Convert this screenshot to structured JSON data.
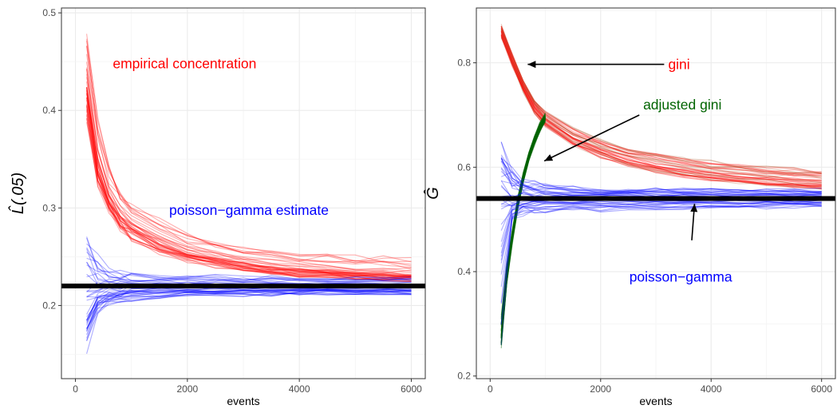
{
  "chart_data": [
    {
      "type": "line",
      "xlabel": "events",
      "ylabel": "L̂(.05)",
      "xlim": [
        -250,
        6250
      ],
      "ylim": [
        0.125,
        0.505
      ],
      "xticks": [
        0,
        2000,
        4000,
        6000
      ],
      "yticks": [
        0.2,
        0.3,
        0.4,
        0.5
      ],
      "xtick_labels": [
        "0",
        "2000",
        "4000",
        "6000"
      ],
      "ytick_labels": [
        "0.2",
        "0.3",
        "0.4",
        "0.5"
      ],
      "grid": true,
      "reference_line": {
        "y": 0.22,
        "color": "#000000"
      },
      "x": [
        200,
        400,
        600,
        800,
        1000,
        1500,
        2000,
        2500,
        3000,
        3500,
        4000,
        4500,
        5000,
        5500,
        6000
      ],
      "series": [
        {
          "label": "empirical concentration",
          "color": "#ff0000",
          "replicates": 40,
          "center": [
            0.43,
            0.35,
            0.315,
            0.295,
            0.284,
            0.268,
            0.257,
            0.25,
            0.245,
            0.241,
            0.238,
            0.236,
            0.234,
            0.233,
            0.232
          ],
          "low": [
            0.385,
            0.32,
            0.29,
            0.275,
            0.265,
            0.252,
            0.243,
            0.238,
            0.233,
            0.23,
            0.228,
            0.227,
            0.226,
            0.225,
            0.224
          ],
          "high": [
            0.49,
            0.4,
            0.35,
            0.325,
            0.31,
            0.295,
            0.28,
            0.27,
            0.264,
            0.26,
            0.257,
            0.255,
            0.254,
            0.253,
            0.252
          ]
        },
        {
          "label": "poisson−gamma estimate",
          "color": "#0000ff",
          "replicates": 40,
          "center": [
            0.215,
            0.218,
            0.219,
            0.219,
            0.22,
            0.22,
            0.22,
            0.22,
            0.22,
            0.22,
            0.22,
            0.22,
            0.22,
            0.22,
            0.22
          ],
          "low": [
            0.14,
            0.19,
            0.198,
            0.202,
            0.204,
            0.206,
            0.207,
            0.208,
            0.209,
            0.209,
            0.21,
            0.21,
            0.21,
            0.21,
            0.21
          ],
          "high": [
            0.29,
            0.255,
            0.243,
            0.238,
            0.236,
            0.234,
            0.233,
            0.232,
            0.231,
            0.231,
            0.23,
            0.23,
            0.23,
            0.23,
            0.23
          ]
        }
      ],
      "annotations": [
        {
          "text": "empirical concentration",
          "color": "#ff0000",
          "x": 1950,
          "y": 0.448
        },
        {
          "text": "poisson−gamma estimate",
          "color": "#0000ff",
          "x": 3100,
          "y": 0.298
        }
      ]
    },
    {
      "type": "line",
      "xlabel": "events",
      "ylabel": "Ĝ",
      "xlim": [
        -250,
        6250
      ],
      "ylim": [
        0.195,
        0.905
      ],
      "xticks": [
        0,
        2000,
        4000,
        6000
      ],
      "yticks": [
        0.2,
        0.4,
        0.6,
        0.8
      ],
      "xtick_labels": [
        "0",
        "2000",
        "4000",
        "6000"
      ],
      "ytick_labels": [
        "0.2",
        "0.4",
        "0.6",
        "0.8"
      ],
      "grid": true,
      "reference_line": {
        "y": 0.54,
        "color": "#000000"
      },
      "x": [
        200,
        400,
        600,
        800,
        1000,
        1500,
        2000,
        2500,
        3000,
        3500,
        4000,
        4500,
        5000,
        5500,
        6000
      ],
      "series": [
        {
          "label": "gini",
          "color": "#ff0000",
          "secondary_color": "#b5653a",
          "replicates": 40,
          "center": [
            0.86,
            0.805,
            0.755,
            0.715,
            0.69,
            0.655,
            0.632,
            0.615,
            0.603,
            0.594,
            0.587,
            0.582,
            0.577,
            0.573,
            0.57
          ],
          "low": [
            0.845,
            0.79,
            0.742,
            0.702,
            0.676,
            0.64,
            0.617,
            0.6,
            0.589,
            0.58,
            0.573,
            0.568,
            0.563,
            0.56,
            0.556
          ],
          "high": [
            0.875,
            0.82,
            0.77,
            0.735,
            0.71,
            0.68,
            0.66,
            0.645,
            0.635,
            0.625,
            0.617,
            0.612,
            0.607,
            0.603,
            0.6
          ]
        },
        {
          "label": "adjusted gini",
          "color": "#006400",
          "replicates": 40,
          "x": [
            200,
            300,
            400,
            500,
            600,
            700,
            800,
            900,
            1000
          ],
          "center": [
            0.27,
            0.39,
            0.465,
            0.53,
            0.58,
            0.62,
            0.65,
            0.675,
            0.695
          ],
          "low": [
            0.245,
            0.37,
            0.45,
            0.515,
            0.567,
            0.608,
            0.64,
            0.665,
            0.685
          ],
          "high": [
            0.335,
            0.42,
            0.485,
            0.545,
            0.593,
            0.632,
            0.662,
            0.688,
            0.705
          ]
        },
        {
          "label": "poisson−gamma",
          "color": "#0000ff",
          "replicates": 40,
          "center": [
            0.53,
            0.535,
            0.537,
            0.538,
            0.539,
            0.539,
            0.54,
            0.54,
            0.54,
            0.54,
            0.54,
            0.54,
            0.54,
            0.54,
            0.54
          ],
          "low": [
            0.225,
            0.48,
            0.5,
            0.505,
            0.508,
            0.51,
            0.512,
            0.513,
            0.514,
            0.515,
            0.515,
            0.516,
            0.516,
            0.516,
            0.517
          ],
          "high": [
            0.65,
            0.6,
            0.585,
            0.575,
            0.57,
            0.566,
            0.563,
            0.562,
            0.561,
            0.56,
            0.56,
            0.56,
            0.56,
            0.56,
            0.56
          ]
        }
      ],
      "annotations": [
        {
          "text": "gini",
          "color": "#ff0000",
          "x": 3420,
          "y": 0.797
        },
        {
          "text": "adjusted gini",
          "color": "#006400",
          "x": 3480,
          "y": 0.72
        },
        {
          "text": "poisson−gamma",
          "color": "#0000ff",
          "x": 3450,
          "y": 0.39
        }
      ],
      "arrows": [
        {
          "from": [
            3150,
            0.797
          ],
          "to": [
            680,
            0.797
          ]
        },
        {
          "from": [
            2700,
            0.7
          ],
          "to": [
            980,
            0.612
          ]
        },
        {
          "from": [
            3650,
            0.46
          ],
          "to": [
            3700,
            0.53
          ]
        }
      ]
    }
  ]
}
